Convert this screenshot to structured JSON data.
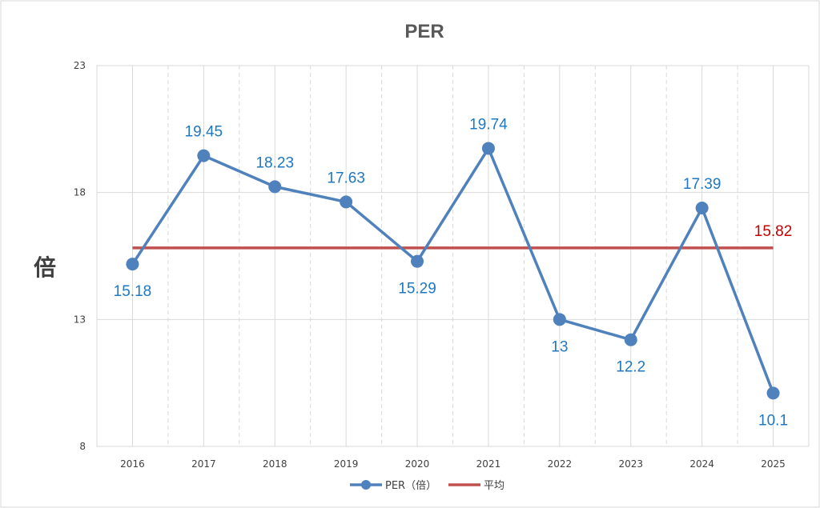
{
  "chart_data": {
    "type": "line",
    "title": "PER",
    "xlabel": "",
    "ylabel": "倍",
    "categories": [
      "2016",
      "2017",
      "2018",
      "2019",
      "2020",
      "2021",
      "2022",
      "2023",
      "2024",
      "2025"
    ],
    "ylim": [
      8,
      23
    ],
    "yticks": [
      8,
      13,
      18,
      23
    ],
    "grid": true,
    "legend_position": "bottom",
    "series": [
      {
        "name": "PER（倍）",
        "color": "#4f81bd",
        "values": [
          15.18,
          19.45,
          18.23,
          17.63,
          15.29,
          19.74,
          13,
          12.2,
          17.39,
          10.1
        ],
        "labels": [
          "15.18",
          "19.45",
          "18.23",
          "17.63",
          "15.29",
          "19.74",
          "13",
          "12.2",
          "17.39",
          "10.1"
        ],
        "label_positions": [
          "below",
          "above",
          "above",
          "above",
          "below",
          "above",
          "below",
          "below",
          "above",
          "below"
        ]
      },
      {
        "name": "平均",
        "color": "#c0504d",
        "values": [
          15.82,
          15.82,
          15.82,
          15.82,
          15.82,
          15.82,
          15.82,
          15.82,
          15.82,
          15.82
        ],
        "end_label": "15.82"
      }
    ]
  }
}
